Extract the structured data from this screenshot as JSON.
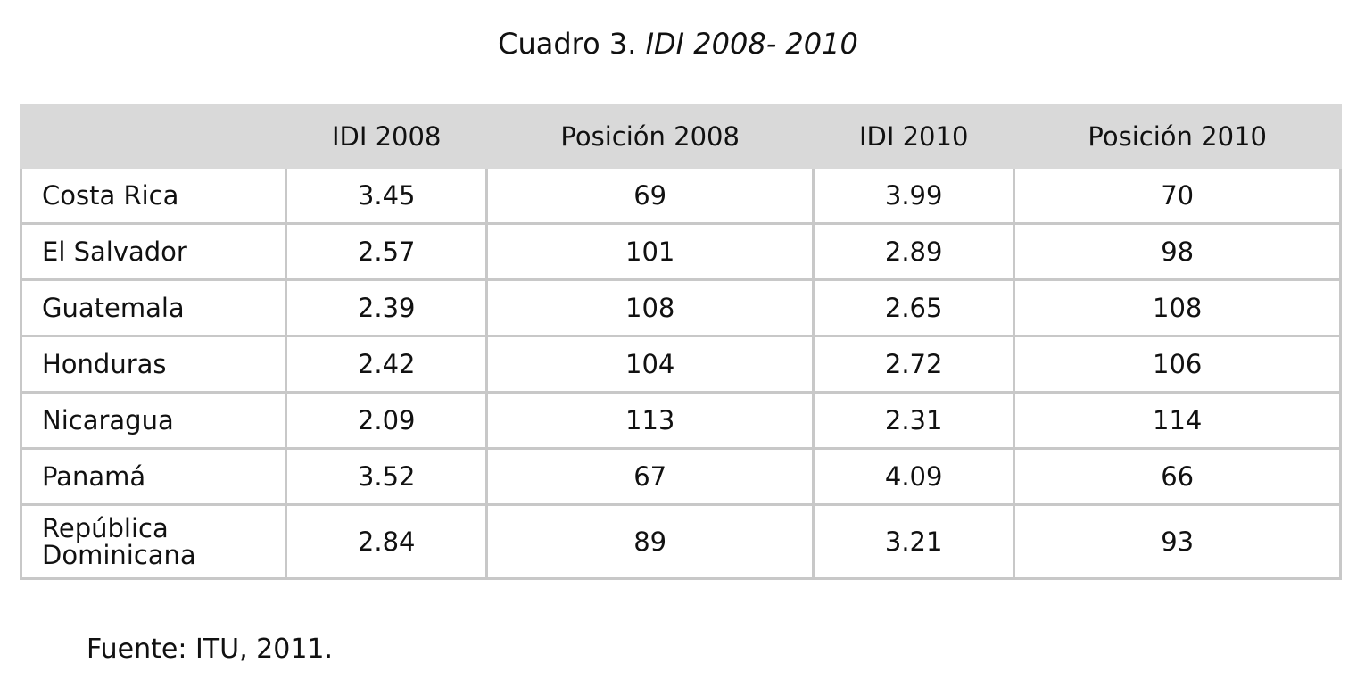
{
  "title": {
    "label": "Cuadro 3.",
    "text": "IDI 2008- 2010"
  },
  "table": {
    "header": [
      "",
      "IDI 2008",
      "Posición 2008",
      "IDI 2010",
      "Posición 2010"
    ],
    "rows": [
      [
        "Costa Rica",
        3.45,
        69,
        3.99,
        70
      ],
      [
        "El Salvador",
        2.57,
        101,
        2.89,
        98
      ],
      [
        "Guatemala",
        2.39,
        108,
        2.65,
        108
      ],
      [
        "Honduras",
        2.42,
        104,
        2.72,
        106
      ],
      [
        "Nicaragua",
        2.09,
        113,
        2.31,
        114
      ],
      [
        "Panamá",
        3.52,
        67,
        4.09,
        66
      ],
      [
        "República Dominicana",
        2.84,
        89,
        3.21,
        93
      ]
    ]
  },
  "source": "Fuente: ITU, 2011."
}
